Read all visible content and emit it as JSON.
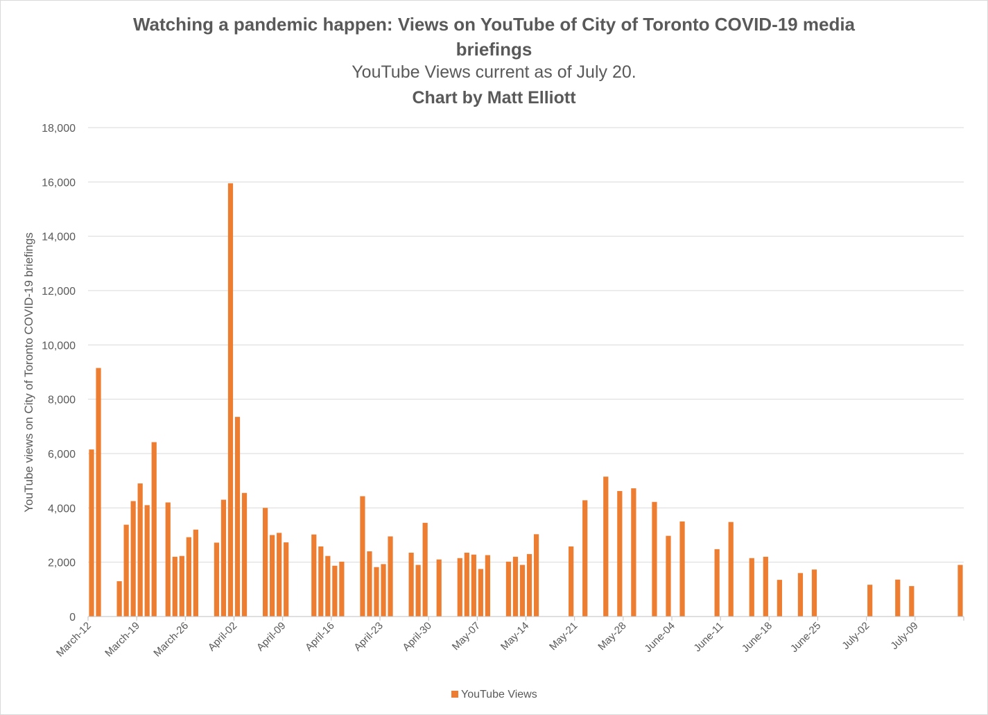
{
  "chart_data": {
    "type": "bar",
    "title_line1": "Watching a pandemic happen: Views on YouTube of City of Toronto COVID-19 media",
    "title_line2": "briefings",
    "subtitle": "YouTube Views current as of July 20.",
    "credit": "Chart by Matt Elliott",
    "ylabel": "YouTube views on City of Toronto COVID-19 briefings",
    "ylim": [
      0,
      18000
    ],
    "yticks": [
      0,
      2000,
      4000,
      6000,
      8000,
      10000,
      12000,
      14000,
      16000,
      18000
    ],
    "ytick_labels": [
      "0",
      "2,000",
      "4,000",
      "6,000",
      "8,000",
      "10,000",
      "12,000",
      "14,000",
      "16,000",
      "18,000"
    ],
    "x_start": "March-12",
    "x_end": "July-15",
    "xtick_labels": [
      "March-12",
      "March-19",
      "March-26",
      "April-02",
      "April-09",
      "April-16",
      "April-23",
      "April-30",
      "May-07",
      "May-14",
      "May-21",
      "May-28",
      "June-04",
      "June-11",
      "June-18",
      "June-25",
      "July-02",
      "July-09"
    ],
    "legend": {
      "label": "YouTube Views",
      "position": "bottom"
    },
    "grid": true,
    "color": "#ED7D31",
    "series": [
      {
        "name": "YouTube Views",
        "points": [
          [
            "March-12",
            6150
          ],
          [
            "March-13",
            9150
          ],
          [
            "March-16",
            1300
          ],
          [
            "March-17",
            3380
          ],
          [
            "March-18",
            4250
          ],
          [
            "March-19",
            4900
          ],
          [
            "March-20",
            4100
          ],
          [
            "March-21",
            6420
          ],
          [
            "March-23",
            4200
          ],
          [
            "March-24",
            2200
          ],
          [
            "March-25",
            2230
          ],
          [
            "March-26",
            2920
          ],
          [
            "March-27",
            3200
          ],
          [
            "March-30",
            2720
          ],
          [
            "March-31",
            4300
          ],
          [
            "April-01",
            15950
          ],
          [
            "April-02",
            7350
          ],
          [
            "April-03",
            4550
          ],
          [
            "April-06",
            4000
          ],
          [
            "April-07",
            3000
          ],
          [
            "April-08",
            3080
          ],
          [
            "April-09",
            2730
          ],
          [
            "April-13",
            3020
          ],
          [
            "April-14",
            2580
          ],
          [
            "April-15",
            2230
          ],
          [
            "April-16",
            1870
          ],
          [
            "April-17",
            2020
          ],
          [
            "April-20",
            4430
          ],
          [
            "April-21",
            2400
          ],
          [
            "April-22",
            1820
          ],
          [
            "April-23",
            1930
          ],
          [
            "April-24",
            2950
          ],
          [
            "April-27",
            2350
          ],
          [
            "April-28",
            1900
          ],
          [
            "April-29",
            3450
          ],
          [
            "May-01",
            2100
          ],
          [
            "May-04",
            2150
          ],
          [
            "May-05",
            2350
          ],
          [
            "May-06",
            2280
          ],
          [
            "May-07",
            1750
          ],
          [
            "May-08",
            2260
          ],
          [
            "May-11",
            2020
          ],
          [
            "May-12",
            2200
          ],
          [
            "May-13",
            1900
          ],
          [
            "May-14",
            2300
          ],
          [
            "May-15",
            3030
          ],
          [
            "May-20",
            2580
          ],
          [
            "May-22",
            4280
          ],
          [
            "May-25",
            5150
          ],
          [
            "May-27",
            4620
          ],
          [
            "May-29",
            4720
          ],
          [
            "June-01",
            4220
          ],
          [
            "June-03",
            2970
          ],
          [
            "June-05",
            3500
          ],
          [
            "June-10",
            2480
          ],
          [
            "June-12",
            3480
          ],
          [
            "June-15",
            2150
          ],
          [
            "June-17",
            2200
          ],
          [
            "June-19",
            1350
          ],
          [
            "June-22",
            1600
          ],
          [
            "June-24",
            1730
          ],
          [
            "July-02",
            1170
          ],
          [
            "July-06",
            1360
          ],
          [
            "July-08",
            1120
          ],
          [
            "July-15",
            1900
          ]
        ]
      }
    ]
  }
}
